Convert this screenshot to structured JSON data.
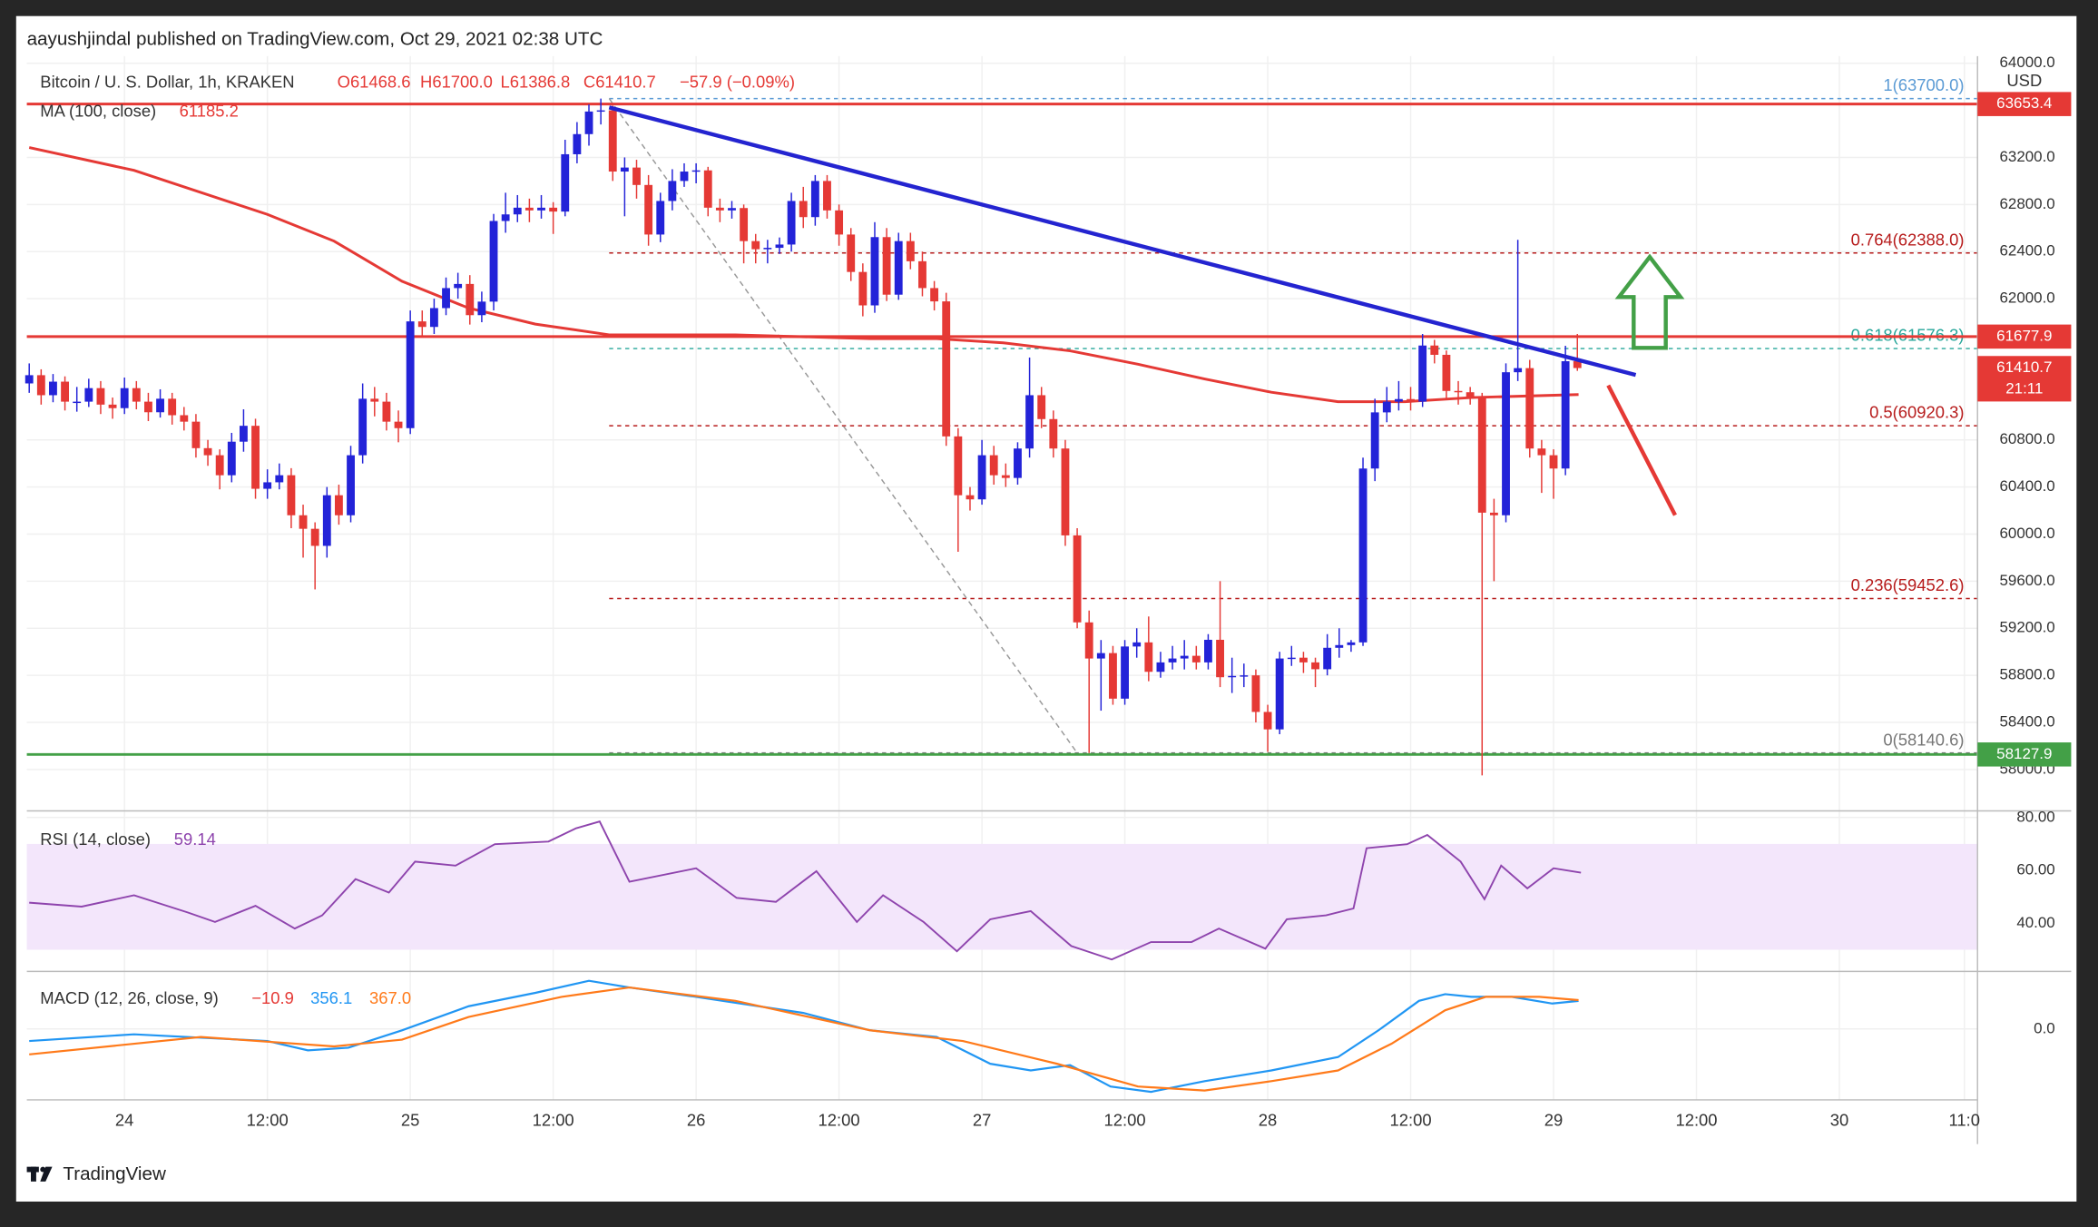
{
  "header": {
    "published": "aayushjindal published on TradingView.com, Oct 29, 2021 02:38 UTC",
    "symbol": "Bitcoin / U. S. Dollar, 1h, KRAKEN",
    "ohlc": [
      "O61468.6",
      "H61700.0",
      "L61386.8",
      "C61410.7"
    ],
    "change": "−57.9 (−0.09%)",
    "currency": "USD",
    "countdown": "21:11",
    "brand": "TradingView"
  },
  "chart_data": {
    "type": "candlestick",
    "xlim": [
      -0.2,
      163.6
    ],
    "xticks": [
      {
        "value": 8,
        "label": "24"
      },
      {
        "value": 20,
        "label": "12:00"
      },
      {
        "value": 32,
        "label": "25"
      },
      {
        "value": 44,
        "label": "12:00"
      },
      {
        "value": 56,
        "label": "26"
      },
      {
        "value": 68,
        "label": "12:00"
      },
      {
        "value": 80,
        "label": "27"
      },
      {
        "value": 92,
        "label": "12:00"
      },
      {
        "value": 104,
        "label": "28"
      },
      {
        "value": 116,
        "label": "12:00"
      },
      {
        "value": 128,
        "label": "29"
      },
      {
        "value": 140,
        "label": "12:00"
      },
      {
        "value": 152,
        "label": "30"
      },
      {
        "value": 162.5,
        "label": "11:0"
      }
    ],
    "ylim": [
      57660,
      64060
    ],
    "yticks": [
      {
        "value": 64000,
        "label": "64000.0"
      },
      {
        "value": 63200,
        "label": "63200.0"
      },
      {
        "value": 62800,
        "label": "62800.0"
      },
      {
        "value": 62400,
        "label": "62400.0"
      },
      {
        "value": 62000,
        "label": "62000.0"
      },
      {
        "value": 60800,
        "label": "60800.0"
      },
      {
        "value": 60400,
        "label": "60400.0"
      },
      {
        "value": 60000,
        "label": "60000.0"
      },
      {
        "value": 59600,
        "label": "59600.0"
      },
      {
        "value": 59200,
        "label": "59200.0"
      },
      {
        "value": 58800,
        "label": "58800.0"
      },
      {
        "value": 58400,
        "label": "58400.0"
      },
      {
        "value": 58000,
        "label": "58000.0"
      }
    ],
    "grid": true,
    "up_color": "#2323d8",
    "down_color": "#e53935",
    "candles": {
      "open": [
        61280,
        61350,
        61180,
        61295,
        61125,
        61125,
        61240,
        61100,
        61070,
        61240,
        61125,
        61035,
        61150,
        61010,
        60955,
        60730,
        60670,
        60500,
        60785,
        60920,
        60385,
        60440,
        60500,
        60160,
        60045,
        59900,
        60330,
        60160,
        60670,
        61150,
        61125,
        60955,
        60900,
        61807,
        61760,
        61920,
        62090,
        62125,
        61860,
        61975,
        62660,
        62716,
        62773,
        62750,
        62773,
        62740,
        63227,
        63398,
        63590,
        63600,
        63080,
        63114,
        62966,
        62545,
        62830,
        63000,
        63080,
        63090,
        62773,
        62750,
        62770,
        62489,
        62420,
        62432,
        62460,
        62830,
        62693,
        63000,
        62750,
        62545,
        62227,
        61943,
        62523,
        62034,
        62489,
        62318,
        62090,
        61977,
        60830,
        60330,
        60295,
        60670,
        60500,
        60477,
        60727,
        61180,
        60977,
        60727,
        59989,
        59250,
        58943,
        58989,
        58602,
        59045,
        59080,
        58830,
        58910,
        58943,
        58966,
        58910,
        59102,
        58784,
        58795,
        58800,
        58489,
        58341,
        58943,
        58950,
        58910,
        58852,
        59034,
        59057,
        59080,
        60557,
        61034,
        61125,
        61147,
        61125,
        61602,
        61523,
        61216,
        61205,
        61160,
        60182,
        60160,
        61375,
        61410,
        60727,
        60670,
        60557,
        61468.6
      ],
      "high": [
        61450,
        61400,
        61360,
        61340,
        61250,
        61320,
        61300,
        61160,
        61330,
        61300,
        61200,
        61230,
        61200,
        61080,
        61020,
        60800,
        60720,
        60860,
        61060,
        60980,
        60550,
        60600,
        60560,
        60250,
        60100,
        60400,
        60420,
        60750,
        61280,
        61250,
        61200,
        61050,
        61900,
        61900,
        62000,
        62180,
        62220,
        62200,
        62060,
        62720,
        62900,
        62880,
        62850,
        62880,
        62820,
        63350,
        63500,
        63650,
        63700,
        63640,
        63200,
        63180,
        63050,
        62900,
        63100,
        63150,
        63150,
        63120,
        62850,
        62830,
        62800,
        62550,
        62500,
        62520,
        62900,
        62950,
        63050,
        63050,
        62800,
        62600,
        62300,
        62650,
        62600,
        62560,
        62560,
        62400,
        62150,
        62050,
        60900,
        60400,
        60800,
        60750,
        60600,
        60780,
        61500,
        61250,
        61050,
        60800,
        60050,
        59350,
        59100,
        59050,
        59100,
        59200,
        59300,
        59000,
        59050,
        59100,
        59050,
        59150,
        59600,
        58950,
        58900,
        58850,
        58550,
        59000,
        59050,
        59000,
        58950,
        59150,
        59200,
        59100,
        60650,
        61150,
        61250,
        61300,
        61250,
        61700,
        61650,
        61560,
        61300,
        61250,
        61200,
        60300,
        61450,
        62500,
        61480,
        60800,
        60720,
        61600,
        61700
      ],
      "low": [
        61200,
        61100,
        61120,
        61050,
        61040,
        61080,
        61020,
        60980,
        61020,
        61060,
        60960,
        60990,
        60930,
        60880,
        60650,
        60580,
        60380,
        60440,
        60700,
        60300,
        60300,
        60380,
        60050,
        59800,
        59530,
        59800,
        60080,
        60100,
        60600,
        61000,
        60880,
        60780,
        60850,
        61680,
        61700,
        61860,
        62000,
        61780,
        61800,
        61900,
        62560,
        62650,
        62650,
        62680,
        62550,
        62700,
        63150,
        63300,
        63480,
        63000,
        62700,
        62850,
        62450,
        62480,
        62750,
        62950,
        62980,
        62700,
        62650,
        62680,
        62300,
        62300,
        62300,
        62380,
        62400,
        62600,
        62620,
        62680,
        62450,
        62150,
        61850,
        61880,
        61980,
        61990,
        62250,
        62020,
        61900,
        60750,
        59850,
        60200,
        60250,
        60420,
        60400,
        60420,
        60650,
        60900,
        60650,
        59900,
        59200,
        58140,
        58500,
        58550,
        58550,
        58950,
        58750,
        58780,
        58850,
        58850,
        58850,
        58850,
        58700,
        58650,
        58700,
        58400,
        58150,
        58300,
        58880,
        58820,
        58700,
        58800,
        58950,
        59000,
        59050,
        60450,
        60950,
        61050,
        61050,
        61080,
        61450,
        61150,
        61100,
        61100,
        57950,
        59600,
        60100,
        61300,
        60650,
        60350,
        60300,
        60500,
        61386.8
      ],
      "close": [
        61350,
        61180,
        61295,
        61125,
        61125,
        61240,
        61100,
        61070,
        61240,
        61125,
        61035,
        61150,
        61010,
        60955,
        60730,
        60670,
        60500,
        60785,
        60920,
        60385,
        60440,
        60500,
        60160,
        60045,
        59900,
        60330,
        60160,
        60670,
        61150,
        61125,
        60955,
        60900,
        61807,
        61760,
        61920,
        62090,
        62125,
        61860,
        61975,
        62660,
        62716,
        62773,
        62750,
        62773,
        62740,
        63227,
        63398,
        63590,
        63600,
        63080,
        63114,
        62966,
        62545,
        62830,
        63000,
        63080,
        63090,
        62773,
        62750,
        62770,
        62489,
        62420,
        62432,
        62460,
        62830,
        62693,
        63000,
        62750,
        62545,
        62227,
        61943,
        62523,
        62034,
        62489,
        62318,
        62090,
        61977,
        60830,
        60330,
        60295,
        60670,
        60500,
        60477,
        60727,
        61180,
        60977,
        60727,
        59989,
        59250,
        58943,
        58989,
        58602,
        59045,
        59080,
        58830,
        58910,
        58943,
        58966,
        58910,
        59102,
        58784,
        58795,
        58800,
        58489,
        58341,
        58943,
        58950,
        58910,
        58852,
        59034,
        59057,
        59080,
        60557,
        61034,
        61125,
        61147,
        61125,
        61602,
        61523,
        61216,
        61205,
        61160,
        60182,
        60160,
        61375,
        61410,
        60727,
        60670,
        60557,
        61468.6,
        61410.7
      ]
    },
    "ma": {
      "name": "MA (100, close)",
      "color": "#e53935",
      "x": [
        0,
        8.8,
        20,
        25.6,
        31.3,
        36.9,
        42.5,
        48.7,
        59.3,
        70.6,
        76.2,
        81.8,
        87.4,
        93.1,
        98.7,
        104.3,
        109.9,
        115.5,
        121.1,
        130.1
      ],
      "values": [
        63284,
        63090,
        62716,
        62489,
        62148,
        61920,
        61784,
        61693,
        61693,
        61660,
        61660,
        61625,
        61557,
        61443,
        61318,
        61205,
        61125,
        61125,
        61160,
        61185.2
      ]
    },
    "levels": [
      {
        "value": 63653.4,
        "color": "#e53935"
      },
      {
        "value": 61677.9,
        "color": "#e53935"
      },
      {
        "value": 58127.9,
        "color": "#43a047"
      }
    ],
    "trendline": {
      "color": "#2424d0",
      "x": [
        48.7,
        134.9
      ],
      "values": [
        63625,
        61352
      ]
    },
    "fib_x": [
      48.7,
      88.0
    ],
    "fib": [
      {
        "label": "1(63700.0)",
        "value": 63700,
        "color": "#5b9bd5"
      },
      {
        "label": "0.764(62388.0)",
        "value": 62388,
        "color": "#b71c1c"
      },
      {
        "label": "0.618(61576.3)",
        "value": 61576.3,
        "color": "#26a69a"
      },
      {
        "label": "0.5(60920.3)",
        "value": 60920.3,
        "color": "#b71c1c"
      },
      {
        "label": "0.236(59452.6)",
        "value": 59452.6,
        "color": "#b71c1c"
      },
      {
        "label": "0(58140.6)",
        "value": 58140.6,
        "color": "#777777"
      }
    ],
    "rsi": {
      "name": "RSI (14, close)",
      "color": "#8e44ad",
      "ylim": [
        22.3,
        82
      ],
      "yticks": [
        {
          "value": 80,
          "label": "80.00"
        },
        {
          "value": 60,
          "label": "60.00"
        },
        {
          "value": 40,
          "label": "40.00"
        }
      ],
      "band": [
        30,
        70
      ],
      "x": [
        0,
        4.4,
        8.8,
        13.3,
        15.6,
        19,
        22.3,
        24.6,
        27.4,
        30.2,
        32.4,
        35.8,
        39.1,
        43.6,
        45.9,
        47.9,
        50.4,
        56,
        59.4,
        62.7,
        66.1,
        69.5,
        71.7,
        75.1,
        77.9,
        80.7,
        84.1,
        87.5,
        90.9,
        94.2,
        97.6,
        99.9,
        103.8,
        105.6,
        108.9,
        111.2,
        112.3,
        115.7,
        117.4,
        120.2,
        122.2,
        123.6,
        125.8,
        128,
        130.3
      ],
      "values": [
        47.8,
        46.3,
        50.6,
        44.1,
        40.5,
        46.6,
        38,
        43,
        56.7,
        51.6,
        63.3,
        61.8,
        69.9,
        70.9,
        75.9,
        78.5,
        55.7,
        60.8,
        49.6,
        48.1,
        59.7,
        40.5,
        50.6,
        40.5,
        29.4,
        41.5,
        44.6,
        31.4,
        26.3,
        32.9,
        32.9,
        38,
        30.4,
        41.5,
        43,
        45.6,
        68.4,
        69.9,
        73.4,
        63.3,
        49.1,
        61.8,
        53.2,
        60.8,
        59.14
      ]
    },
    "macd": {
      "name": "MACD (12, 26, close, 9)",
      "legend": [
        "−10.9",
        "356.1",
        "367.0"
      ],
      "ylim": [
        -901,
        714
      ],
      "yticks": [
        {
          "value": 0,
          "label": "0.0"
        }
      ],
      "series": [
        {
          "color": "#2196f3",
          "x": [
            0,
            8.8,
            20,
            23.4,
            26.8,
            31.3,
            36.9,
            42.5,
            47,
            50.4,
            56,
            65,
            70.6,
            76.2,
            80.7,
            84.1,
            87.4,
            90.8,
            94.2,
            98.7,
            104.3,
            109.9,
            113.3,
            116.7,
            118.9,
            121.1,
            124.5,
            127.9,
            130.1
          ],
          "values": [
            -153,
            -68,
            -153,
            -272,
            -238,
            -17,
            289,
            459,
            612,
            527,
            408,
            204,
            -17,
            -102,
            -442,
            -527,
            -459,
            -731,
            -799,
            -663,
            -527,
            -357,
            -17,
            357,
            442,
            408,
            408,
            323,
            356.1
          ]
        },
        {
          "color": "#ff7a1a",
          "x": [
            0,
            14.4,
            25.6,
            31.3,
            36.9,
            44.7,
            50.4,
            59.3,
            70.6,
            78.4,
            86.3,
            93.1,
            98.7,
            104.3,
            109.9,
            114.4,
            118.9,
            122.3,
            126.8,
            130.1
          ],
          "values": [
            -323,
            -102,
            -221,
            -136,
            153,
            408,
            527,
            357,
            -17,
            -153,
            -442,
            -731,
            -782,
            -663,
            -527,
            -187,
            238,
            408,
            408,
            367
          ]
        }
      ]
    }
  }
}
